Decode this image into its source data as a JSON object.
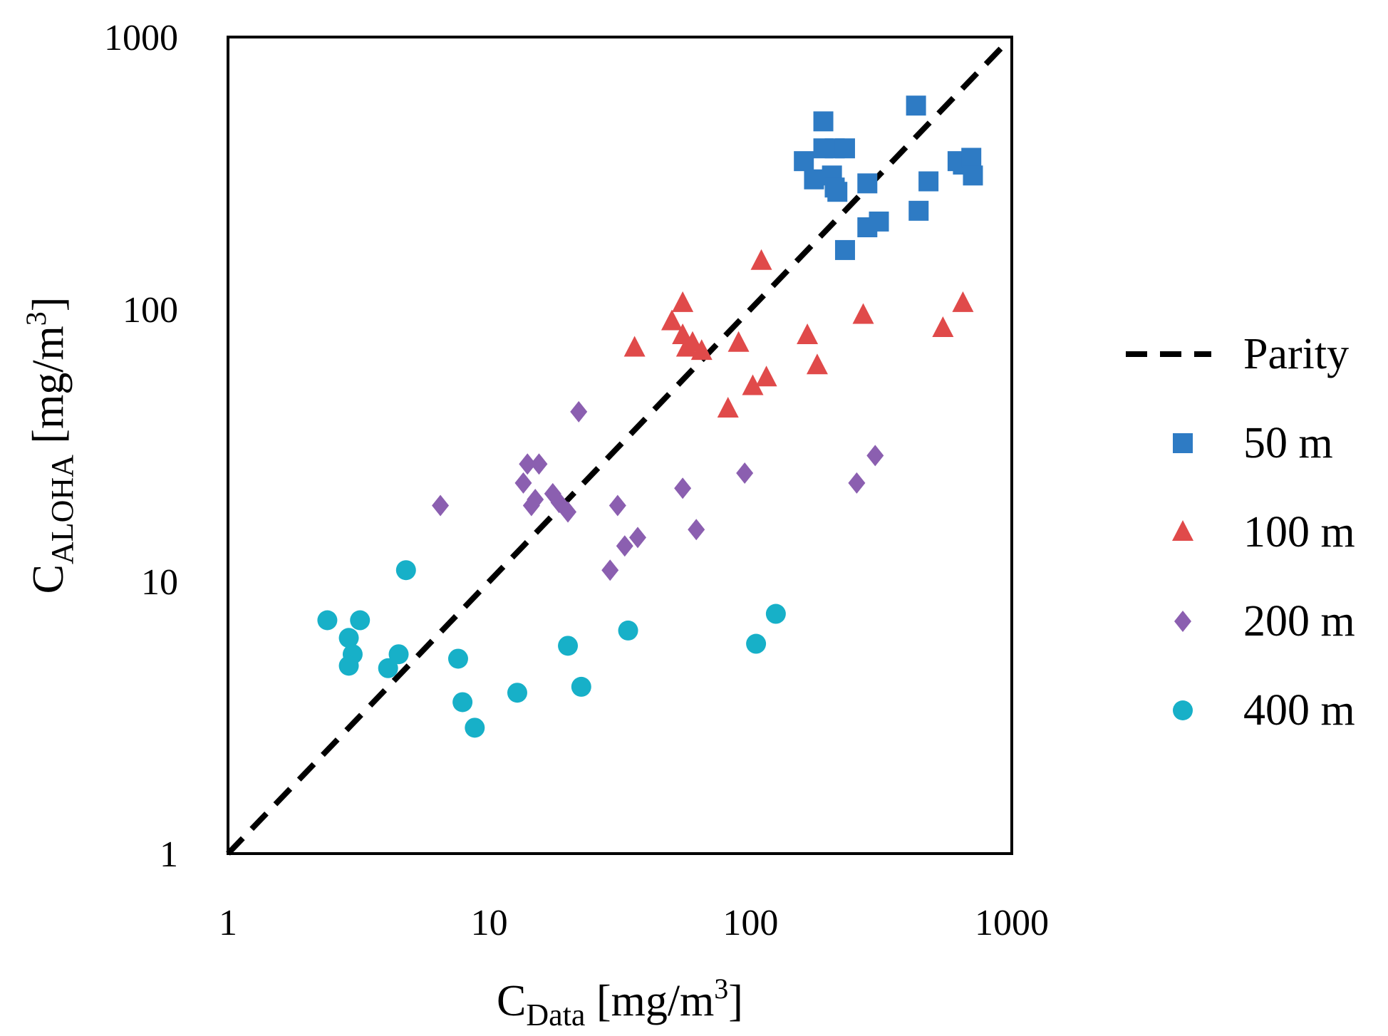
{
  "chart_data": {
    "type": "scatter",
    "x_scale": "log",
    "y_scale": "log",
    "xlim": [
      1,
      1000
    ],
    "ylim": [
      1,
      1000
    ],
    "grid": false,
    "legend_position": "right",
    "x_ticks": [
      "1",
      "10",
      "100",
      "1000"
    ],
    "y_ticks": [
      "1",
      "10",
      "100",
      "1000"
    ],
    "xlabel": {
      "main": "C",
      "sub": "Data",
      "rest": " [mg/m",
      "sup": "3",
      "close": "]"
    },
    "ylabel": {
      "main": "C",
      "sub": "ALOHA",
      "rest": " [mg/m",
      "sup": "3",
      "close": "]"
    },
    "parity": {
      "name": "Parity",
      "color": "#000000",
      "x": [
        1,
        1000
      ],
      "y": [
        1,
        1000
      ]
    },
    "series": [
      {
        "name": "50 m",
        "marker": "square",
        "color": "#2E7BC4",
        "points": [
          [
            190,
            490
          ],
          [
            430,
            560
          ],
          [
            160,
            350
          ],
          [
            190,
            390
          ],
          [
            210,
            390
          ],
          [
            230,
            390
          ],
          [
            175,
            300
          ],
          [
            205,
            310
          ],
          [
            210,
            280
          ],
          [
            215,
            270
          ],
          [
            280,
            290
          ],
          [
            480,
            295
          ],
          [
            620,
            350
          ],
          [
            650,
            340
          ],
          [
            700,
            360
          ],
          [
            710,
            310
          ],
          [
            440,
            230
          ],
          [
            310,
            210
          ],
          [
            280,
            200
          ],
          [
            230,
            165
          ]
        ]
      },
      {
        "name": "100 m",
        "marker": "triangle",
        "color": "#E04A4A",
        "points": [
          [
            110,
            150
          ],
          [
            55,
            105
          ],
          [
            50,
            90
          ],
          [
            55,
            80
          ],
          [
            60,
            75
          ],
          [
            57,
            72
          ],
          [
            65,
            70
          ],
          [
            36,
            72
          ],
          [
            90,
            75
          ],
          [
            165,
            80
          ],
          [
            270,
            95
          ],
          [
            650,
            105
          ],
          [
            545,
            85
          ],
          [
            180,
            62
          ],
          [
            115,
            56
          ],
          [
            102,
            52
          ],
          [
            82,
            43
          ]
        ]
      },
      {
        "name": "200 m",
        "marker": "diamond",
        "color": "#8B5FB0",
        "points": [
          [
            22,
            42
          ],
          [
            14,
            27
          ],
          [
            15.5,
            27
          ],
          [
            13.5,
            23
          ],
          [
            15,
            20
          ],
          [
            14.5,
            19
          ],
          [
            17.5,
            21
          ],
          [
            18.5,
            19.5
          ],
          [
            20,
            18
          ],
          [
            6.5,
            19
          ],
          [
            31,
            19
          ],
          [
            55,
            22
          ],
          [
            95,
            25
          ],
          [
            300,
            29
          ],
          [
            255,
            23
          ],
          [
            33,
            13.5
          ],
          [
            37,
            14.5
          ],
          [
            62,
            15.5
          ],
          [
            29,
            11
          ]
        ]
      },
      {
        "name": "400 m",
        "marker": "circle",
        "color": "#17B0C8",
        "points": [
          [
            4.8,
            11
          ],
          [
            2.4,
            7.2
          ],
          [
            3.2,
            7.2
          ],
          [
            2.9,
            6.2
          ],
          [
            3,
            5.4
          ],
          [
            2.9,
            4.9
          ],
          [
            4.1,
            4.8
          ],
          [
            4.5,
            5.4
          ],
          [
            7.6,
            5.2
          ],
          [
            7.9,
            3.6
          ],
          [
            8.8,
            2.9
          ],
          [
            12.8,
            3.9
          ],
          [
            20,
            5.8
          ],
          [
            22.5,
            4.1
          ],
          [
            34,
            6.6
          ],
          [
            105,
            5.9
          ],
          [
            125,
            7.6
          ]
        ]
      }
    ]
  }
}
